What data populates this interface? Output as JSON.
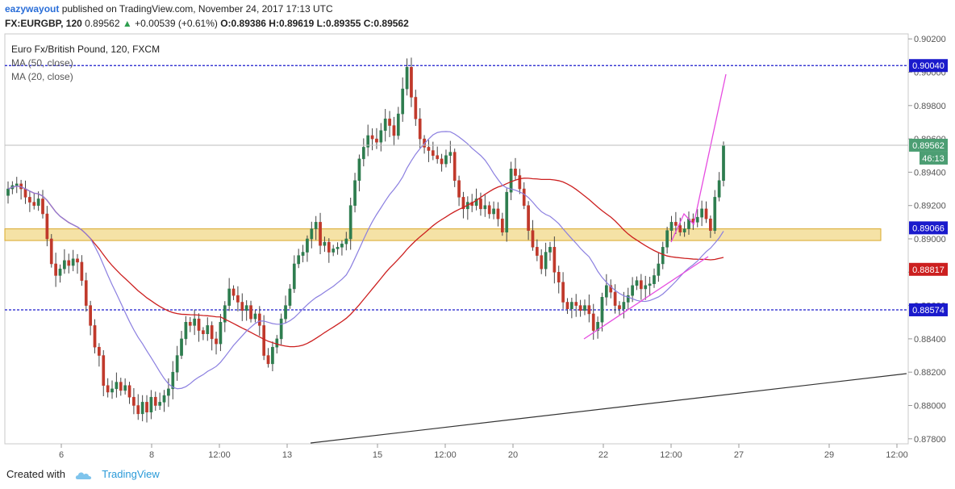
{
  "header": {
    "author": "eazywayout",
    "published": "published on TradingView.com, November 24, 2017 17:13 UTC",
    "symbol_line": "FX:EURGBP, 120",
    "last": "0.89562",
    "change": "+0.00539 (+0.61%)",
    "ohlc_o": "O:0.89386",
    "ohlc_h": "H:0.89619",
    "ohlc_l": "L:0.89355",
    "ohlc_c": "C:0.89562"
  },
  "legend": {
    "title": "Euro Fx/British Pound, 120, FXCM",
    "ma50": "MA (50, close)",
    "ma20": "MA (20, close)"
  },
  "footer": {
    "created_with": "Created with",
    "brand": "TradingView"
  },
  "colors": {
    "bull": "#2e7d4f",
    "bear": "#c0392b",
    "ma50": "#cc1f1f",
    "ma20": "#8b7fe0",
    "level": "#1a1acc",
    "trend_pink": "#e64ce0",
    "zone": "#e8b93a",
    "current": "#4c9e73"
  },
  "chart_data": {
    "type": "candlestick",
    "title": "Euro Fx/British Pound, 120, FXCM",
    "ylim": [
      0.8777,
      0.9023
    ],
    "y_ticks": [
      "0.90200",
      "0.90000",
      "0.89800",
      "0.89600",
      "0.89400",
      "0.89200",
      "0.89000",
      "0.88800",
      "0.88600",
      "0.88400",
      "0.88200",
      "0.88000",
      "0.87800"
    ],
    "x_ticks": [
      "6",
      "8",
      "12:00",
      "13",
      "15",
      "12:00",
      "20",
      "22",
      "12:00",
      "27",
      "29",
      "12:00"
    ],
    "level_labels": [
      {
        "value": 0.9004,
        "text": "0.90040",
        "color": "#1a1acc"
      },
      {
        "value": 0.89562,
        "text": "0.89562",
        "color": "#4c9e73"
      },
      {
        "value": 0.89066,
        "text": "0.89066",
        "color": "#1a1acc"
      },
      {
        "value": 0.88817,
        "text": "0.88817",
        "color": "#cc1f1f"
      },
      {
        "value": 0.88574,
        "text": "0.88574",
        "color": "#1a1acc"
      }
    ],
    "countdown": "46:13",
    "horizontal_levels": [
      0.9004,
      0.88574
    ],
    "support_zone": [
      0.8899,
      0.8906
    ],
    "closes": [
      0.893,
      0.8932,
      0.8933,
      0.893,
      0.8925,
      0.8922,
      0.892,
      0.8924,
      0.8915,
      0.89,
      0.8885,
      0.8878,
      0.8882,
      0.8887,
      0.8884,
      0.8888,
      0.8886,
      0.8875,
      0.886,
      0.8848,
      0.8835,
      0.883,
      0.8812,
      0.8808,
      0.881,
      0.8814,
      0.8809,
      0.8812,
      0.8805,
      0.88,
      0.8795,
      0.8802,
      0.8796,
      0.8805,
      0.88,
      0.8802,
      0.8806,
      0.881,
      0.882,
      0.883,
      0.884,
      0.885,
      0.8848,
      0.8852,
      0.8845,
      0.8843,
      0.8848,
      0.884,
      0.8837,
      0.885,
      0.886,
      0.887,
      0.8866,
      0.8862,
      0.8857,
      0.886,
      0.8852,
      0.8855,
      0.8848,
      0.883,
      0.8825,
      0.8835,
      0.884,
      0.8852,
      0.886,
      0.887,
      0.8885,
      0.889,
      0.8892,
      0.89,
      0.8906,
      0.891,
      0.8896,
      0.8898,
      0.8892,
      0.8894,
      0.8895,
      0.8897,
      0.89,
      0.892,
      0.8935,
      0.8948,
      0.8955,
      0.8962,
      0.896,
      0.8958,
      0.8965,
      0.8972,
      0.8968,
      0.8962,
      0.8975,
      0.899,
      0.9003,
      0.8985,
      0.8972,
      0.896,
      0.8955,
      0.8953,
      0.895,
      0.8948,
      0.8945,
      0.895,
      0.8952,
      0.8935,
      0.8925,
      0.8918,
      0.8922,
      0.892,
      0.8924,
      0.8918,
      0.892,
      0.8915,
      0.8918,
      0.8912,
      0.8904,
      0.8928,
      0.8942,
      0.8938,
      0.893,
      0.892,
      0.8905,
      0.8895,
      0.889,
      0.8882,
      0.8892,
      0.8895,
      0.888,
      0.8874,
      0.8862,
      0.8858,
      0.8862,
      0.886,
      0.8857,
      0.886,
      0.8855,
      0.8845,
      0.885,
      0.8865,
      0.8872,
      0.8868,
      0.886,
      0.8858,
      0.8862,
      0.8866,
      0.8872,
      0.8875,
      0.887,
      0.8872,
      0.8873,
      0.8878,
      0.8885,
      0.8895,
      0.8905,
      0.891,
      0.8908,
      0.8904,
      0.8906,
      0.8912,
      0.891,
      0.8913,
      0.8918,
      0.8912,
      0.8905,
      0.8925,
      0.8935,
      0.8956
    ],
    "ma20_end": 0.89066,
    "ma50_end": 0.88817
  }
}
